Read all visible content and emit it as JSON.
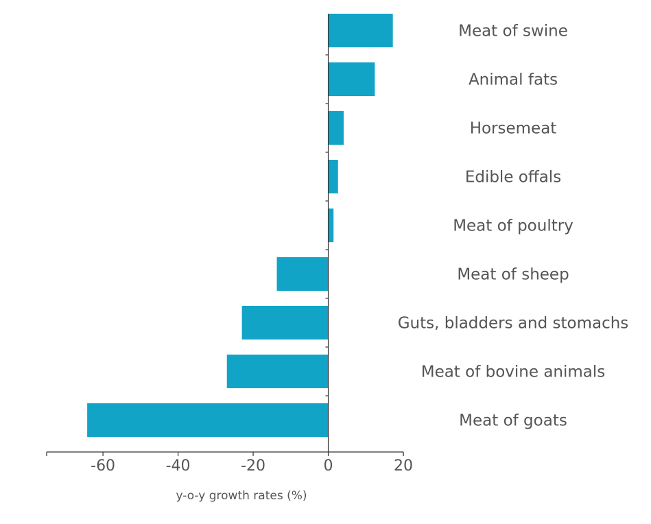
{
  "chart_data": {
    "type": "bar",
    "orientation": "horizontal",
    "categories": [
      "Meat of swine",
      "Animal fats",
      "Horsemeat",
      "Edible offals",
      "Meat of poultry",
      "Meat of sheep",
      "Guts, bladders and stomachs",
      "Meat of bovine animals",
      "Meat of goats"
    ],
    "values": [
      17.2,
      12.4,
      4.1,
      2.6,
      1.4,
      -13.7,
      -23.0,
      -27.0,
      -64.2
    ],
    "xlabel": "y-o-y growth rates (%)",
    "ylabel": "",
    "xlim": [
      -75,
      20
    ],
    "xticks": [
      -60,
      -40,
      -20,
      0,
      20
    ],
    "xtick_labels": [
      "-60",
      "-40",
      "-20",
      "0",
      "20"
    ],
    "grid": false,
    "bar_color": "#12A4C6"
  }
}
